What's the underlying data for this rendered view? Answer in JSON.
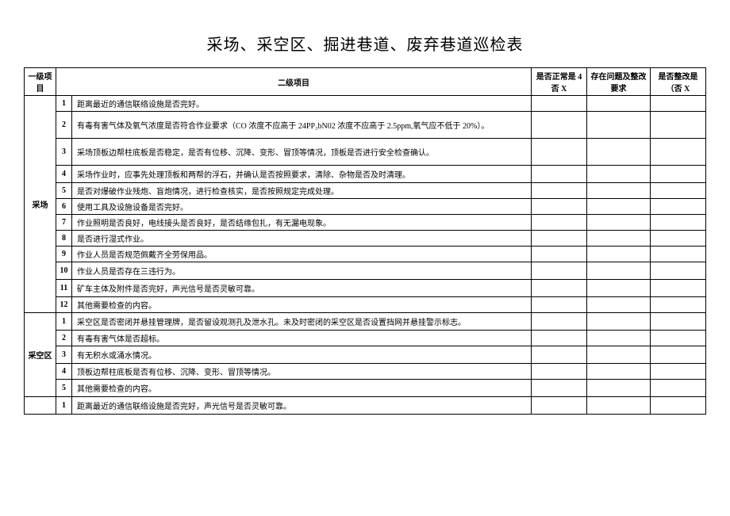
{
  "title": "采场、采空区、掘进巷道、废弃巷道巡检表",
  "headers": {
    "cat": "一级项目",
    "sub": "二级项目",
    "status": "是否正常是 4 否 X",
    "issue": "存在问题及整改要求",
    "fixed": "是否整改是（否 X"
  },
  "sections": [
    {
      "name": "采场",
      "rows": [
        {
          "n": "1",
          "t": "距离最近的通信联络设施是否完好。",
          "h": "small"
        },
        {
          "n": "2",
          "t": "有毒有害气体及氧气浓度是否符合作业要求（CO 浓度不应高于 24PP₃bN02 浓度不应高于 2.5ppm,氧气应不低于 20%）。",
          "h": "tall"
        },
        {
          "n": "3",
          "t": "采场顶板边帮柱底板是否稳定，是否有位移、沉降、变形、冒顶等情况，顶板是否进行安全检查确认。",
          "h": "tall"
        },
        {
          "n": "4",
          "t": "采场作业时，应事先处理顶板和两帮的浮石，并确认是否按照要求，清除、杂物是否及时清理。",
          "h": "med"
        },
        {
          "n": "5",
          "t": "是否对爆破作业残炮、盲炮情况，进行检查核实，是否按照规定完成处理。",
          "h": "small"
        },
        {
          "n": "6",
          "t": "使用工具及设施设备是否完好。",
          "h": "small"
        },
        {
          "n": "7",
          "t": "作业照明是否良好，电线接头是否良好，是否结缘包扎，有无漏电现象。",
          "h": "small"
        },
        {
          "n": "8",
          "t": "是否进行湿式作业。",
          "h": "small"
        },
        {
          "n": "9",
          "t": "作业人员是否规范佩戴齐全劳保用品。",
          "h": "small"
        },
        {
          "n": "10",
          "t": "作业人员是否存在三违行为。",
          "h": "med"
        },
        {
          "n": "11",
          "t": "矿车主体及附件是否完好，声光信号是否灵敏可靠。",
          "h": "med"
        },
        {
          "n": "12",
          "t": "其他需要检查的内容。",
          "h": "small"
        }
      ]
    },
    {
      "name": "采空区",
      "rows": [
        {
          "n": "1",
          "t": "采空区是否密闭并悬挂管理牌，是否留设观测孔及泄水孔。未及时密闭的采空区是否设置挡网并悬挂警示标志。",
          "h": "med"
        },
        {
          "n": "2",
          "t": "有毒有害气体是否超标。",
          "h": "small"
        },
        {
          "n": "3",
          "t": "有无积水或涌水情况。",
          "h": "med"
        },
        {
          "n": "4",
          "t": "顶板边帮柱底板是否有位移、沉降、变形、冒顶等情况。",
          "h": "small"
        },
        {
          "n": "5",
          "t": "其他需要检查的内容。",
          "h": "med"
        }
      ]
    },
    {
      "name": "",
      "rows": [
        {
          "n": "1",
          "t": "距离最近的通信联络设施是否完好，声光信号是否灵敏可靠。",
          "h": "med"
        }
      ]
    }
  ]
}
